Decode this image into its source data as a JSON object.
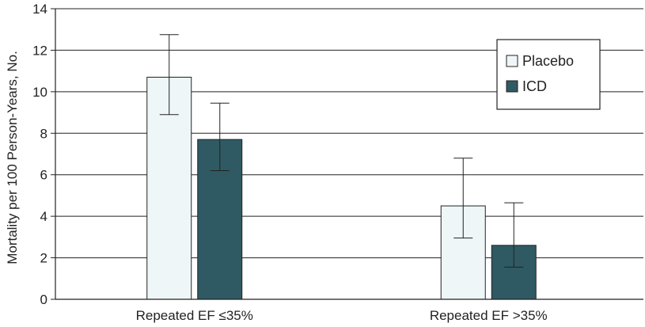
{
  "chart_data": {
    "type": "bar",
    "title": "",
    "xlabel": "",
    "ylabel": "Mortality per 100 Person-Years, No.",
    "categories": [
      "Repeated EF ≤35%",
      "Repeated EF >35%"
    ],
    "series": [
      {
        "name": "Placebo",
        "values": [
          10.7,
          4.5
        ],
        "error_low": [
          8.9,
          2.95
        ],
        "error_high": [
          12.75,
          6.8
        ],
        "color": "#eef6f8"
      },
      {
        "name": "ICD",
        "values": [
          7.7,
          2.6
        ],
        "error_low": [
          6.2,
          1.55
        ],
        "error_high": [
          9.45,
          4.65
        ],
        "color": "#2f5a63"
      }
    ],
    "ylim": [
      0,
      14
    ],
    "yticks": [
      0,
      2,
      4,
      6,
      8,
      10,
      12,
      14
    ],
    "grid": true,
    "legend_position": "top-right"
  }
}
